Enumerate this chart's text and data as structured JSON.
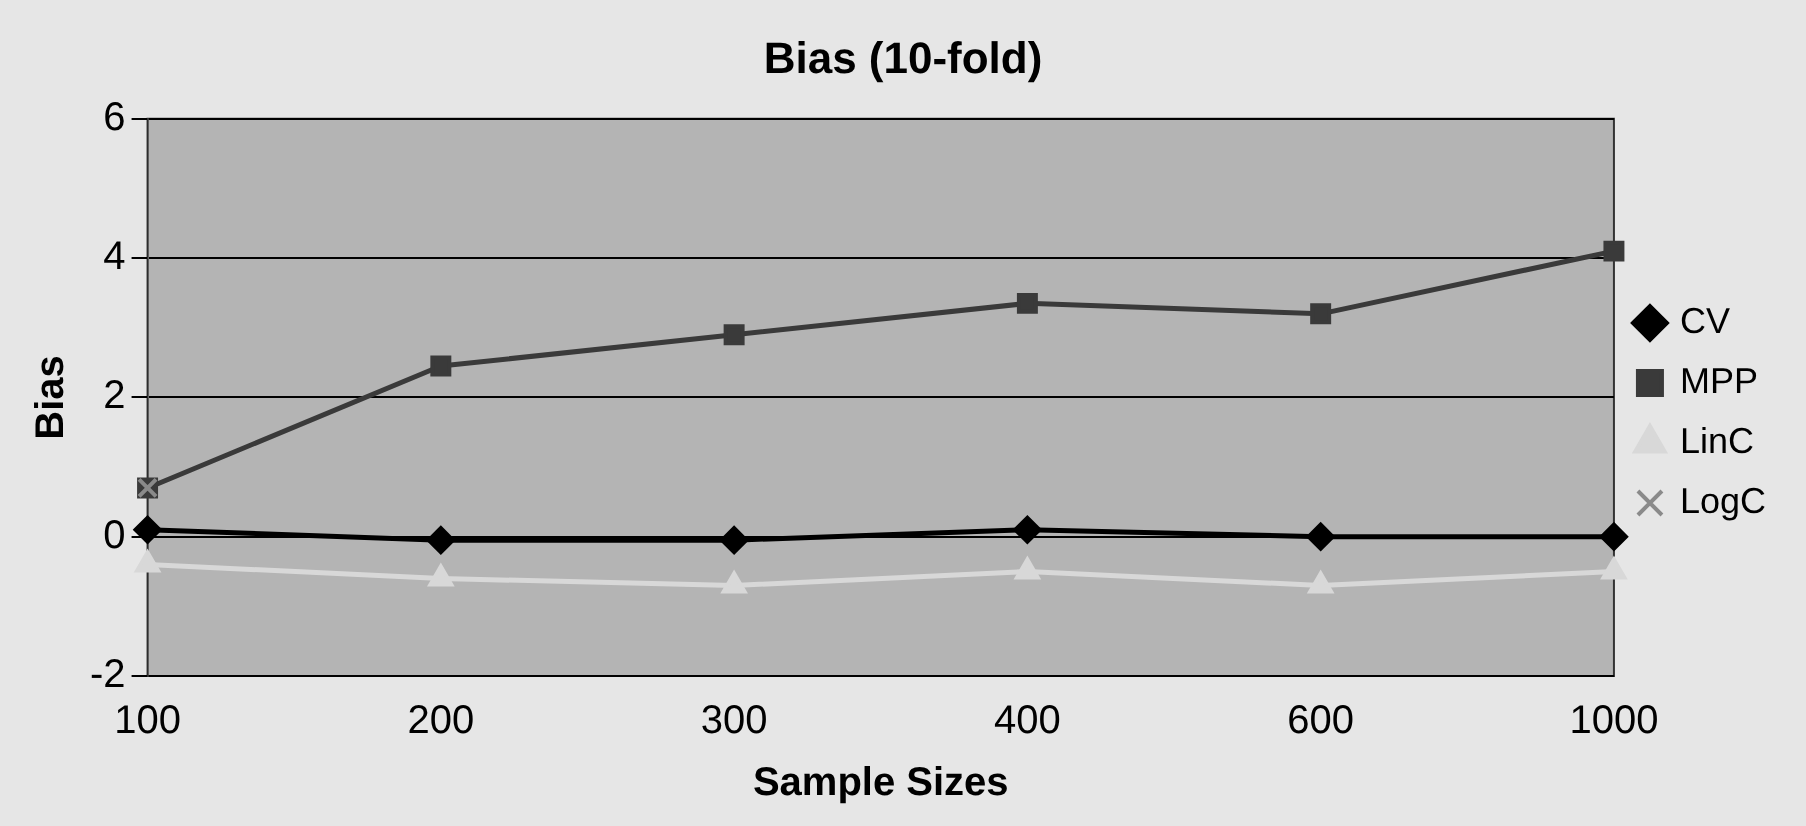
{
  "chart_data": {
    "type": "line",
    "title": "Bias (10-fold)",
    "xlabel": "Sample Sizes",
    "ylabel": "Bias",
    "categories": [
      "100",
      "200",
      "300",
      "400",
      "600",
      "1000"
    ],
    "series": [
      {
        "name": "CV",
        "color": "#000000",
        "marker": "diamond",
        "values": [
          0.1,
          -0.05,
          -0.05,
          0.1,
          0,
          0
        ]
      },
      {
        "name": "MPP",
        "color": "#3a3a3a",
        "marker": "square",
        "values": [
          0.7,
          2.45,
          2.9,
          3.35,
          3.2,
          4.1
        ]
      },
      {
        "name": "LinC",
        "color": "#d8d8d8",
        "marker": "triangle",
        "values": [
          -0.4,
          -0.6,
          -0.7,
          -0.5,
          -0.7,
          -0.5
        ]
      },
      {
        "name": "LogC",
        "color": "#8a8a8a",
        "marker": "cross",
        "values": [
          0.7,
          null,
          null,
          null,
          null,
          null
        ]
      }
    ],
    "ylim": [
      -2,
      6
    ],
    "yticks": [
      -2,
      0,
      2,
      4,
      6
    ],
    "grid": "y",
    "legend": "right"
  }
}
